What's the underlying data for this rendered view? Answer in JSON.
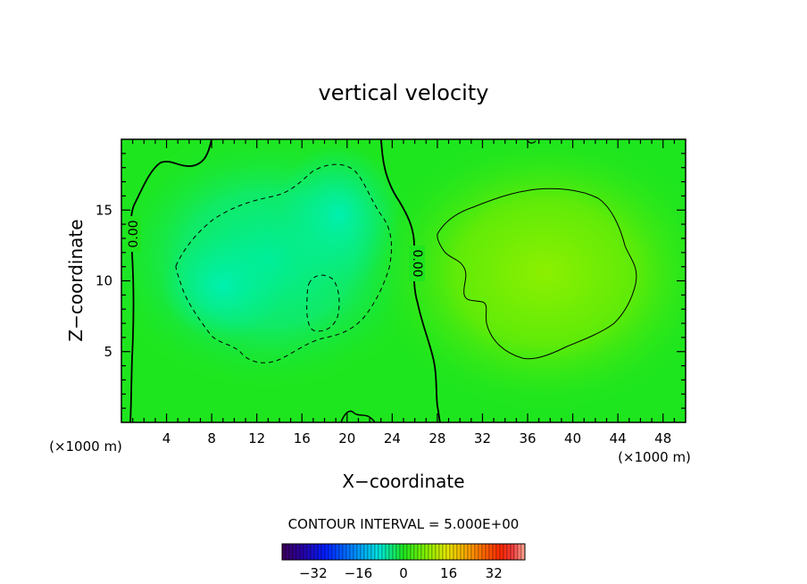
{
  "chart_data": {
    "type": "heatmap",
    "title": "vertical velocity",
    "xlabel": "X−coordinate",
    "ylabel": "Z−coordinate",
    "x_unit_left": "(×1000 m)",
    "x_unit_right": "(×1000 m)",
    "xlim": [
      0,
      50
    ],
    "ylim": [
      0,
      20
    ],
    "xticks": [
      4,
      8,
      12,
      16,
      20,
      24,
      28,
      32,
      36,
      40,
      44,
      48
    ],
    "yticks": [
      5,
      10,
      15
    ],
    "contour_interval_label": "CONTOUR INTERVAL = 5.000E+00",
    "contour_labels": [
      "0.00",
      "0.00"
    ],
    "colorbar": {
      "range": [
        -43,
        43
      ],
      "ticks": [
        "−32",
        "−16",
        "0",
        "16",
        "32"
      ],
      "tick_values": [
        -32,
        -16,
        0,
        16,
        32
      ]
    },
    "features": [
      {
        "kind": "downdraft",
        "center": [
          18,
          14
        ],
        "approx_min": -8
      },
      {
        "kind": "updraft",
        "center": [
          38,
          11.5
        ],
        "approx_max": 8
      }
    ],
    "colors": {
      "background_field": "#1ee61e",
      "downdraft_core": "#00ee99",
      "updraft_core": "#88f000"
    }
  }
}
